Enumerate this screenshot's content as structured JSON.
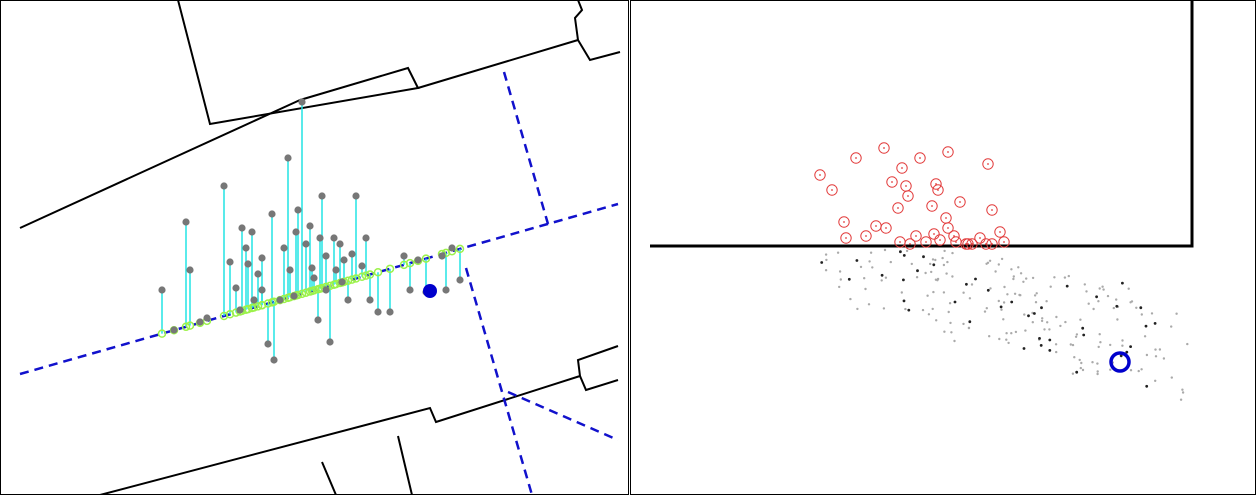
{
  "figure": {
    "panels": [
      {
        "id": "left"
      },
      {
        "id": "right"
      }
    ],
    "colors": {
      "walls": "#000000",
      "dashed_lanes": "#1111cc",
      "projection_lines": "#22e4e4",
      "projected_points": "#9cf24a",
      "gray_points": "#777777",
      "robot_marker": "#0000cc",
      "red_circles": "#e23c3c"
    },
    "icons": {
      "robot_marker": "filled-circle",
      "red_markers": "open-circle-with-dot"
    }
  }
}
